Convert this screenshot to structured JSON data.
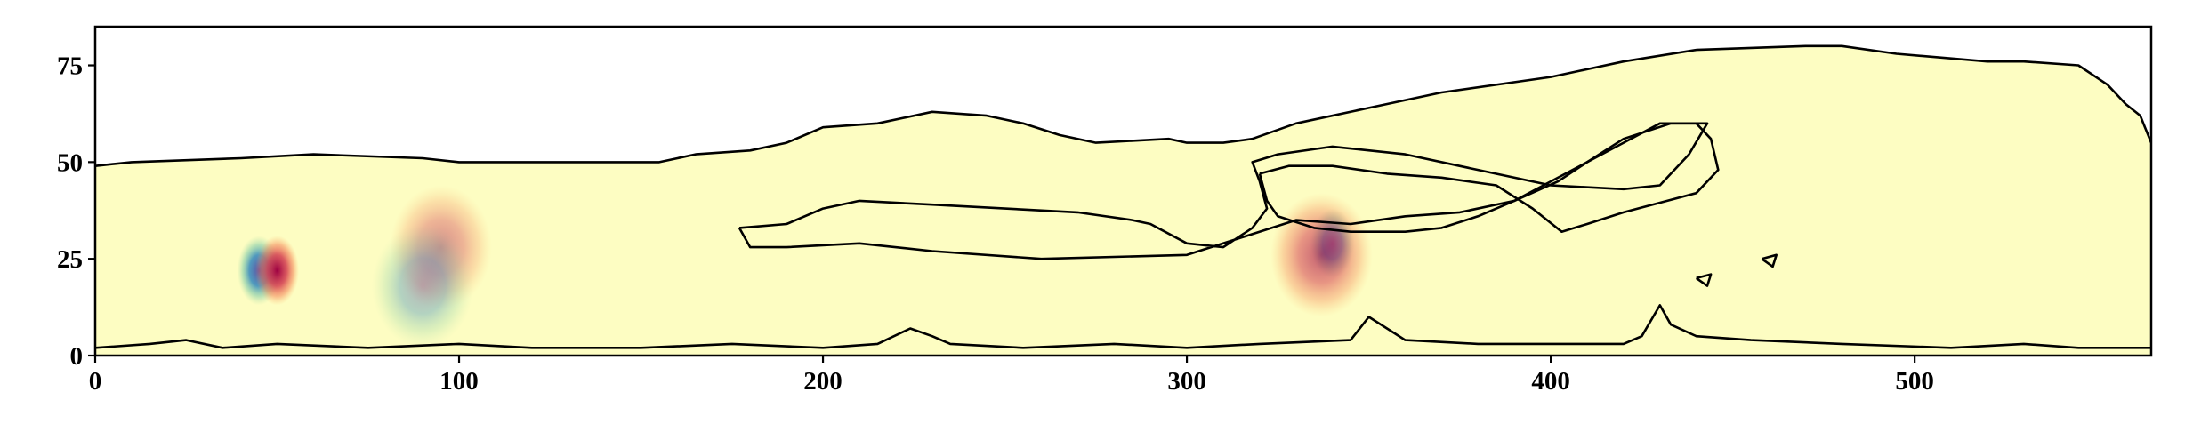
{
  "chart_data": {
    "type": "heatmap",
    "title": "",
    "xlabel": "",
    "ylabel": "",
    "xlim": [
      0,
      565
    ],
    "ylim": [
      0,
      85
    ],
    "x_ticks": [
      0,
      100,
      200,
      300,
      400,
      500
    ],
    "y_ticks": [
      0,
      25,
      50,
      75
    ],
    "grid": false,
    "colormap": "Spectral",
    "colors": {
      "background": "#fdfdc2",
      "positive": "#9e0142",
      "negative": "#5e4fa2",
      "contour": "#000000"
    },
    "anomalies": [
      {
        "x": 45,
        "y": 22,
        "sign": "negative",
        "amplitude": 1.0
      },
      {
        "x": 50,
        "y": 22,
        "sign": "positive",
        "amplitude": 1.0
      },
      {
        "x": 340,
        "y": 29,
        "sign": "negative",
        "amplitude": 0.8
      },
      {
        "x": 337,
        "y": 26,
        "sign": "positive",
        "amplitude": 0.45
      },
      {
        "x": 95,
        "y": 28,
        "sign": "positive",
        "amplitude": 0.15
      },
      {
        "x": 90,
        "y": 18,
        "sign": "negative",
        "amplitude": 0.12
      }
    ],
    "contours": {
      "top_boundary": [
        [
          0,
          49
        ],
        [
          10,
          50
        ],
        [
          40,
          51
        ],
        [
          60,
          52
        ],
        [
          90,
          51
        ],
        [
          100,
          50
        ],
        [
          120,
          50
        ],
        [
          155,
          50
        ],
        [
          165,
          52
        ],
        [
          180,
          53
        ],
        [
          190,
          55
        ],
        [
          200,
          59
        ],
        [
          215,
          60
        ],
        [
          230,
          63
        ],
        [
          245,
          62
        ],
        [
          255,
          60
        ],
        [
          265,
          57
        ],
        [
          275,
          55
        ],
        [
          295,
          56
        ],
        [
          300,
          55
        ],
        [
          310,
          55
        ],
        [
          318,
          56
        ],
        [
          330,
          60
        ],
        [
          350,
          64
        ],
        [
          370,
          68
        ],
        [
          400,
          72
        ],
        [
          420,
          76
        ],
        [
          440,
          79
        ],
        [
          470,
          80
        ],
        [
          480,
          80
        ],
        [
          495,
          78
        ],
        [
          520,
          76
        ],
        [
          530,
          76
        ],
        [
          545,
          75
        ],
        [
          553,
          70
        ],
        [
          555,
          68
        ],
        [
          558,
          65
        ],
        [
          562,
          62
        ],
        [
          565,
          55
        ]
      ],
      "upper_band": [
        [
          177,
          33
        ],
        [
          190,
          34
        ],
        [
          200,
          38
        ],
        [
          210,
          40
        ],
        [
          230,
          39
        ],
        [
          250,
          38
        ],
        [
          270,
          37
        ],
        [
          285,
          35
        ],
        [
          290,
          34
        ],
        [
          300,
          29
        ],
        [
          310,
          28
        ],
        [
          318,
          33
        ],
        [
          322,
          38
        ],
        [
          320,
          45
        ],
        [
          318,
          50
        ],
        [
          325,
          52
        ],
        [
          340,
          54
        ],
        [
          360,
          52
        ],
        [
          380,
          48
        ],
        [
          400,
          44
        ],
        [
          420,
          43
        ],
        [
          430,
          44
        ],
        [
          438,
          52
        ],
        [
          443,
          60
        ],
        [
          433,
          60
        ],
        [
          420,
          56
        ],
        [
          410,
          50
        ],
        [
          402,
          45
        ],
        [
          390,
          40
        ],
        [
          375,
          37
        ],
        [
          360,
          36
        ],
        [
          345,
          34
        ],
        [
          330,
          35
        ],
        [
          300,
          26
        ],
        [
          260,
          25
        ],
        [
          230,
          27
        ],
        [
          210,
          29
        ],
        [
          190,
          28
        ],
        [
          180,
          28
        ],
        [
          177,
          33
        ]
      ],
      "lower_band": [
        [
          320,
          47
        ],
        [
          328,
          49
        ],
        [
          340,
          49
        ],
        [
          355,
          47
        ],
        [
          370,
          46
        ],
        [
          385,
          44
        ],
        [
          395,
          38
        ],
        [
          403,
          32
        ],
        [
          410,
          34
        ],
        [
          420,
          37
        ],
        [
          432,
          40
        ],
        [
          440,
          42
        ],
        [
          446,
          48
        ],
        [
          444,
          56
        ],
        [
          440,
          60
        ],
        [
          430,
          60
        ],
        [
          420,
          55
        ],
        [
          410,
          50
        ],
        [
          400,
          45
        ],
        [
          390,
          40
        ],
        [
          380,
          36
        ],
        [
          370,
          33
        ],
        [
          360,
          32
        ],
        [
          345,
          32
        ],
        [
          335,
          33
        ],
        [
          325,
          36
        ],
        [
          322,
          40
        ],
        [
          320,
          47
        ]
      ],
      "bottom_boundary": [
        [
          0,
          2
        ],
        [
          15,
          3
        ],
        [
          25,
          4
        ],
        [
          35,
          2
        ],
        [
          50,
          3
        ],
        [
          75,
          2
        ],
        [
          100,
          3
        ],
        [
          120,
          2
        ],
        [
          150,
          2
        ],
        [
          175,
          3
        ],
        [
          200,
          2
        ],
        [
          215,
          3
        ],
        [
          224,
          7
        ],
        [
          230,
          5
        ],
        [
          235,
          3
        ],
        [
          255,
          2
        ],
        [
          280,
          3
        ],
        [
          300,
          2
        ],
        [
          320,
          3
        ],
        [
          345,
          4
        ],
        [
          350,
          10
        ],
        [
          355,
          7
        ],
        [
          360,
          4
        ],
        [
          380,
          3
        ],
        [
          400,
          3
        ],
        [
          420,
          3
        ],
        [
          425,
          5
        ],
        [
          430,
          13
        ],
        [
          433,
          8
        ],
        [
          440,
          5
        ],
        [
          455,
          4
        ],
        [
          480,
          3
        ],
        [
          510,
          2
        ],
        [
          530,
          3
        ],
        [
          545,
          2
        ],
        [
          565,
          2
        ]
      ],
      "small_blob_1": [
        [
          458,
          25
        ],
        [
          462,
          26
        ],
        [
          461,
          23
        ],
        [
          458,
          25
        ]
      ],
      "small_blob_2": [
        [
          440,
          20
        ],
        [
          444,
          21
        ],
        [
          443,
          18
        ],
        [
          440,
          20
        ]
      ]
    }
  }
}
